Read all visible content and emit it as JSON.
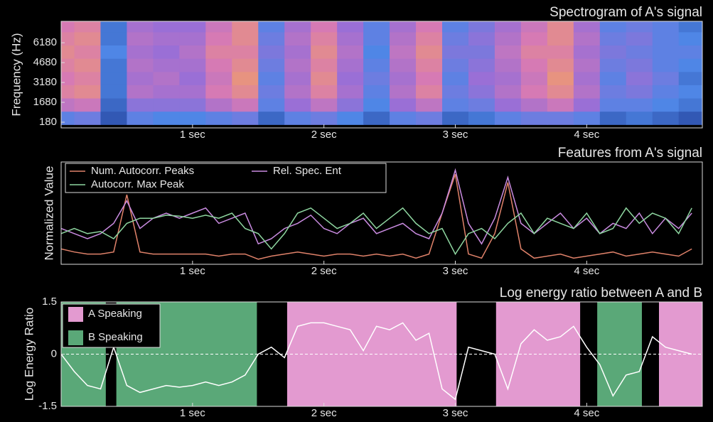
{
  "chart_data": [
    {
      "type": "heatmap",
      "title": "Spectrogram of A's signal",
      "ylabel": "Frequency (Hz)",
      "xlim": [
        0,
        4.88
      ],
      "ylim": [
        -250,
        7800
      ],
      "xticks": [
        {
          "value": 1,
          "label": "1 sec"
        },
        {
          "value": 2,
          "label": "2 sec"
        },
        {
          "value": 3,
          "label": "3 sec"
        },
        {
          "value": 4,
          "label": "4 sec"
        }
      ],
      "yticks": [
        180,
        1680,
        3180,
        4680,
        6180
      ],
      "colormap": [
        "#1f3a93",
        "#4f86e6",
        "#9a6fd6",
        "#d67ab4",
        "#f2a35e"
      ],
      "x": [
        0,
        0.2,
        0.4,
        0.6,
        0.8,
        1.0,
        1.2,
        1.4,
        1.6,
        1.8,
        2.0,
        2.2,
        2.4,
        2.6,
        2.8,
        3.0,
        3.2,
        3.4,
        3.6,
        3.8,
        4.0,
        4.2,
        4.4,
        4.6,
        4.8
      ],
      "y": [
        500,
        1500,
        2500,
        3500,
        4500,
        5500,
        6500,
        7500
      ],
      "z": [
        [
          0.3,
          0.35,
          0.1,
          0.3,
          0.25,
          0.25,
          0.3,
          0.35,
          0.15,
          0.3,
          0.35,
          0.25,
          0.15,
          0.3,
          0.35,
          0.15,
          0.2,
          0.3,
          0.35,
          0.35,
          0.3,
          0.15,
          0.2,
          0.15,
          0.1
        ],
        [
          0.65,
          0.7,
          0.15,
          0.45,
          0.45,
          0.45,
          0.6,
          0.7,
          0.3,
          0.5,
          0.65,
          0.45,
          0.25,
          0.5,
          0.65,
          0.3,
          0.35,
          0.5,
          0.6,
          0.7,
          0.5,
          0.3,
          0.3,
          0.25,
          0.2
        ],
        [
          0.8,
          0.85,
          0.2,
          0.6,
          0.55,
          0.55,
          0.75,
          0.85,
          0.35,
          0.6,
          0.8,
          0.55,
          0.3,
          0.6,
          0.8,
          0.35,
          0.45,
          0.6,
          0.75,
          0.85,
          0.6,
          0.35,
          0.4,
          0.3,
          0.25
        ],
        [
          0.75,
          0.8,
          0.2,
          0.55,
          0.6,
          0.5,
          0.7,
          0.9,
          0.3,
          0.55,
          0.85,
          0.5,
          0.35,
          0.55,
          0.75,
          0.3,
          0.5,
          0.55,
          0.7,
          0.9,
          0.55,
          0.3,
          0.45,
          0.35,
          0.2
        ],
        [
          0.8,
          0.85,
          0.2,
          0.6,
          0.55,
          0.55,
          0.75,
          0.85,
          0.35,
          0.6,
          0.8,
          0.55,
          0.3,
          0.6,
          0.8,
          0.35,
          0.45,
          0.6,
          0.75,
          0.85,
          0.6,
          0.35,
          0.4,
          0.3,
          0.25
        ],
        [
          0.85,
          0.8,
          0.25,
          0.55,
          0.5,
          0.6,
          0.8,
          0.8,
          0.4,
          0.55,
          0.85,
          0.6,
          0.25,
          0.65,
          0.85,
          0.4,
          0.4,
          0.65,
          0.8,
          0.8,
          0.55,
          0.4,
          0.35,
          0.3,
          0.3
        ],
        [
          0.8,
          0.85,
          0.2,
          0.6,
          0.55,
          0.55,
          0.75,
          0.85,
          0.35,
          0.6,
          0.8,
          0.55,
          0.3,
          0.6,
          0.8,
          0.35,
          0.45,
          0.6,
          0.75,
          0.85,
          0.6,
          0.35,
          0.4,
          0.3,
          0.25
        ],
        [
          0.75,
          0.8,
          0.2,
          0.55,
          0.5,
          0.5,
          0.7,
          0.85,
          0.3,
          0.55,
          0.75,
          0.5,
          0.3,
          0.55,
          0.75,
          0.3,
          0.4,
          0.55,
          0.7,
          0.85,
          0.55,
          0.3,
          0.35,
          0.3,
          0.2
        ]
      ]
    },
    {
      "type": "line",
      "title": "Features from A's signal",
      "ylabel": "Normalized Value",
      "xlim": [
        0,
        4.88
      ],
      "ylim": [
        0,
        1
      ],
      "legend": "upper left",
      "xticks": [
        {
          "value": 1,
          "label": "1 sec"
        },
        {
          "value": 2,
          "label": "2 sec"
        },
        {
          "value": 3,
          "label": "3 sec"
        },
        {
          "value": 4,
          "label": "4 sec"
        }
      ],
      "x": [
        0,
        0.1,
        0.2,
        0.3,
        0.4,
        0.5,
        0.6,
        0.7,
        0.8,
        0.9,
        1.0,
        1.1,
        1.2,
        1.3,
        1.4,
        1.5,
        1.6,
        1.7,
        1.8,
        1.9,
        2.0,
        2.1,
        2.2,
        2.3,
        2.4,
        2.5,
        2.6,
        2.7,
        2.8,
        2.9,
        3.0,
        3.1,
        3.2,
        3.3,
        3.4,
        3.5,
        3.6,
        3.7,
        3.8,
        3.9,
        4.0,
        4.1,
        4.2,
        4.3,
        4.4,
        4.5,
        4.6,
        4.7,
        4.8
      ],
      "series": [
        {
          "name": "Num. Autocorr. Peaks",
          "color": "#e0826a",
          "values": [
            0.15,
            0.12,
            0.1,
            0.1,
            0.12,
            0.68,
            0.12,
            0.1,
            0.1,
            0.1,
            0.1,
            0.1,
            0.08,
            0.1,
            0.1,
            0.05,
            0.08,
            0.1,
            0.12,
            0.1,
            0.08,
            0.1,
            0.1,
            0.08,
            0.1,
            0.08,
            0.1,
            0.06,
            0.1,
            0.5,
            0.88,
            0.1,
            0.06,
            0.3,
            0.8,
            0.15,
            0.06,
            0.08,
            0.1,
            0.06,
            0.08,
            0.1,
            0.12,
            0.08,
            0.1,
            0.12,
            0.1,
            0.08,
            0.15
          ]
        },
        {
          "name": "Rel. Spec. Ent",
          "color": "#c98be0",
          "values": [
            0.35,
            0.3,
            0.25,
            0.3,
            0.4,
            0.62,
            0.35,
            0.45,
            0.5,
            0.45,
            0.5,
            0.55,
            0.4,
            0.45,
            0.5,
            0.2,
            0.25,
            0.35,
            0.4,
            0.48,
            0.35,
            0.3,
            0.4,
            0.45,
            0.3,
            0.35,
            0.4,
            0.3,
            0.25,
            0.5,
            0.92,
            0.4,
            0.2,
            0.45,
            0.85,
            0.4,
            0.3,
            0.4,
            0.5,
            0.35,
            0.45,
            0.3,
            0.4,
            0.35,
            0.5,
            0.3,
            0.45,
            0.35,
            0.5
          ]
        },
        {
          "name": "Autocorr. Max Peak",
          "color": "#8ed6a0",
          "values": [
            0.3,
            0.35,
            0.3,
            0.32,
            0.25,
            0.4,
            0.45,
            0.45,
            0.48,
            0.47,
            0.45,
            0.48,
            0.45,
            0.5,
            0.35,
            0.3,
            0.15,
            0.3,
            0.5,
            0.55,
            0.45,
            0.35,
            0.4,
            0.5,
            0.35,
            0.45,
            0.55,
            0.4,
            0.3,
            0.35,
            0.1,
            0.3,
            0.35,
            0.25,
            0.4,
            0.5,
            0.3,
            0.45,
            0.4,
            0.35,
            0.5,
            0.3,
            0.35,
            0.55,
            0.4,
            0.5,
            0.45,
            0.3,
            0.55
          ]
        }
      ]
    },
    {
      "type": "line",
      "title": "Log energy ratio between A and B",
      "ylabel": "Log Energy Ratio",
      "xlim": [
        0,
        4.88
      ],
      "ylim": [
        -1.5,
        1.5
      ],
      "yticks": [
        -1.5,
        0,
        1.5
      ],
      "hline": 0,
      "legend": "upper left",
      "xticks": [
        {
          "value": 1,
          "label": "1 sec"
        },
        {
          "value": 2,
          "label": "2 sec"
        },
        {
          "value": 3,
          "label": "3 sec"
        },
        {
          "value": 4,
          "label": "4 sec"
        }
      ],
      "spans": [
        {
          "name": "A Speaking",
          "color": "#e39ad0",
          "intervals": [
            [
              1.72,
              3.01
            ],
            [
              3.31,
              3.95
            ],
            [
              4.55,
              4.88
            ]
          ]
        },
        {
          "name": "B Speaking",
          "color": "#5aa878",
          "intervals": [
            [
              0,
              0.34
            ],
            [
              0.42,
              1.49
            ],
            [
              4.08,
              4.42
            ]
          ]
        }
      ],
      "x": [
        0,
        0.1,
        0.2,
        0.3,
        0.4,
        0.5,
        0.6,
        0.7,
        0.8,
        0.9,
        1.0,
        1.1,
        1.2,
        1.3,
        1.4,
        1.5,
        1.6,
        1.7,
        1.8,
        1.9,
        2.0,
        2.1,
        2.2,
        2.3,
        2.4,
        2.5,
        2.6,
        2.7,
        2.8,
        2.9,
        3.0,
        3.1,
        3.2,
        3.3,
        3.4,
        3.5,
        3.6,
        3.7,
        3.8,
        3.9,
        4.0,
        4.1,
        4.2,
        4.3,
        4.4,
        4.5,
        4.6,
        4.7,
        4.8
      ],
      "series": [
        {
          "color": "#ffffff",
          "values": [
            0,
            -0.5,
            -0.9,
            -1.0,
            0.2,
            -0.9,
            -1.1,
            -1.0,
            -0.9,
            -0.95,
            -0.9,
            -0.8,
            -0.9,
            -0.8,
            -0.6,
            0.0,
            0.2,
            -0.1,
            0.8,
            0.9,
            0.9,
            0.8,
            0.7,
            0.1,
            0.8,
            0.7,
            0.9,
            0.4,
            0.6,
            -1.0,
            -1.3,
            0.2,
            0.1,
            0.0,
            -1.0,
            0.3,
            0.7,
            0.4,
            0.5,
            0.8,
            0.2,
            -0.3,
            -1.2,
            -0.6,
            -0.5,
            0.5,
            0.2,
            0.1,
            0.0
          ]
        }
      ]
    }
  ]
}
